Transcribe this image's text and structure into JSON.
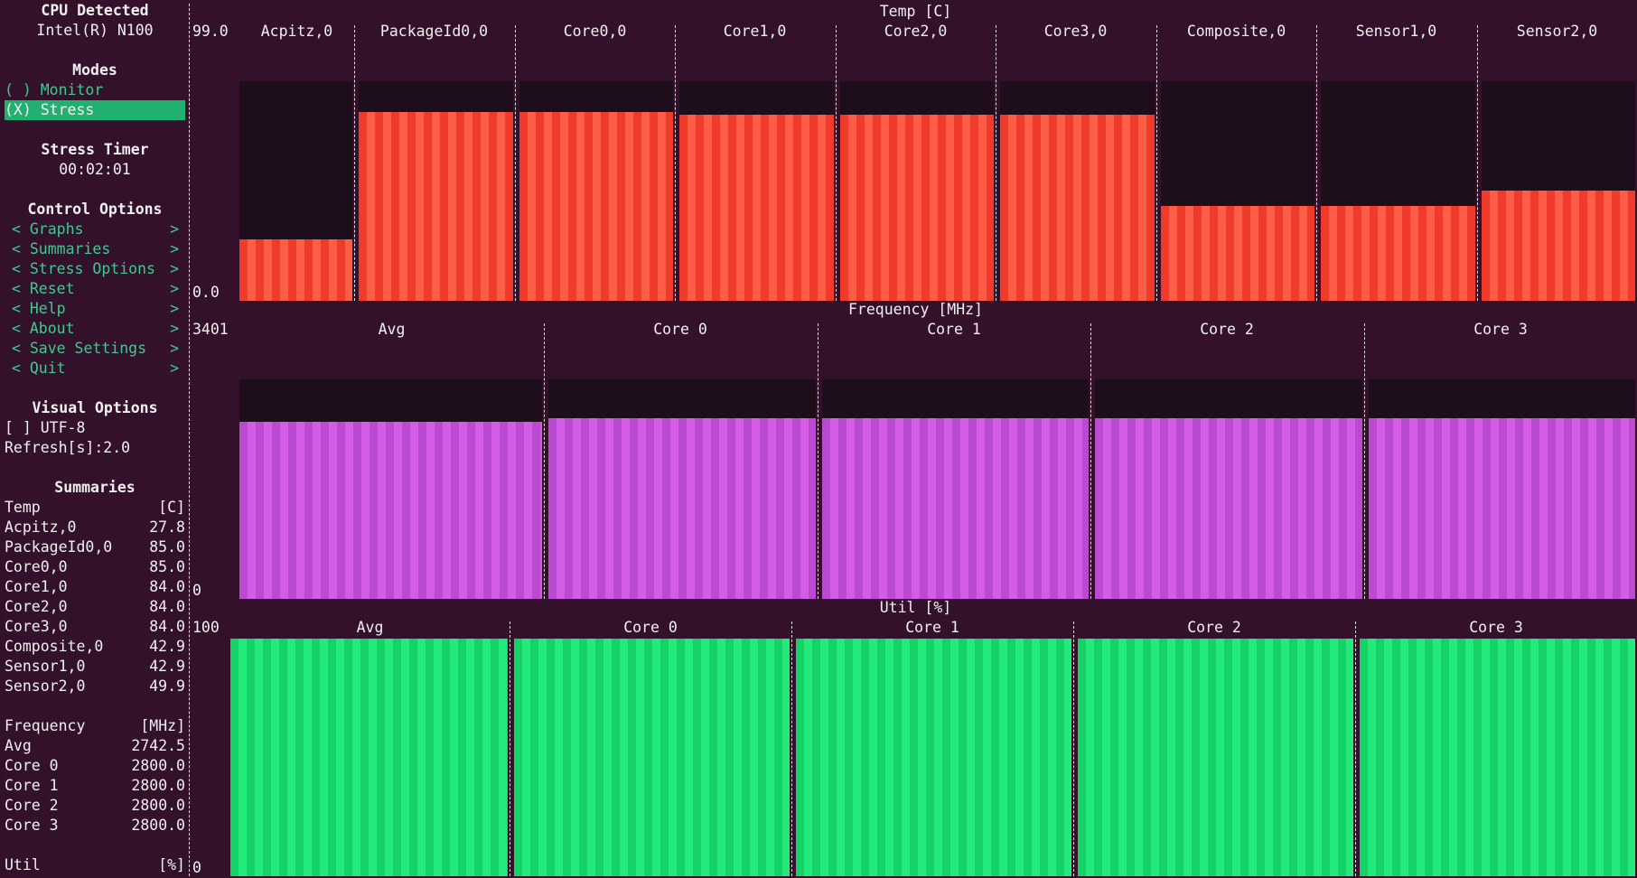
{
  "sidebar": {
    "cpu_title": "CPU Detected",
    "cpu_name": "Intel(R) N100",
    "modes_title": "Modes",
    "modes": [
      {
        "label": "( ) Monitor",
        "selected": false
      },
      {
        "label": "(X) Stress",
        "selected": true
      }
    ],
    "timer_title": "Stress Timer",
    "timer_value": "00:02:01",
    "control_title": "Control Options",
    "control_items": [
      {
        "left": "< Graphs",
        "right": ">"
      },
      {
        "left": "< Summaries",
        "right": ">"
      },
      {
        "left": "< Stress Options",
        "right": ">"
      },
      {
        "left": "< Reset",
        "right": ">"
      },
      {
        "left": "< Help",
        "right": ">"
      },
      {
        "left": "< About",
        "right": ">"
      },
      {
        "left": "< Save Settings",
        "right": ">"
      },
      {
        "left": "< Quit",
        "right": ">"
      }
    ],
    "visual_title": "Visual Options",
    "utf8_option": "[ ] UTF-8",
    "refresh_option": "Refresh[s]:2.0",
    "summaries_title": "Summaries",
    "summaries": [
      {
        "label": "Temp",
        "value": "[C]"
      },
      {
        "label": "Acpitz,0",
        "value": "27.8"
      },
      {
        "label": "PackageId0,0",
        "value": "85.0"
      },
      {
        "label": "Core0,0",
        "value": "85.0"
      },
      {
        "label": "Core1,0",
        "value": "84.0"
      },
      {
        "label": "Core2,0",
        "value": "84.0"
      },
      {
        "label": "Core3,0",
        "value": "84.0"
      },
      {
        "label": "Composite,0",
        "value": "42.9"
      },
      {
        "label": "Sensor1,0",
        "value": "42.9"
      },
      {
        "label": "Sensor2,0",
        "value": "49.9"
      },
      {
        "label": "",
        "value": ""
      },
      {
        "label": "Frequency",
        "value": "[MHz]"
      },
      {
        "label": "Avg",
        "value": "2742.5"
      },
      {
        "label": "Core 0",
        "value": "2800.0"
      },
      {
        "label": "Core 1",
        "value": "2800.0"
      },
      {
        "label": "Core 2",
        "value": "2800.0"
      },
      {
        "label": "Core 3",
        "value": "2800.0"
      },
      {
        "label": "",
        "value": ""
      },
      {
        "label": "Util",
        "value": "[%]"
      }
    ]
  },
  "graphs": {
    "temp": {
      "title": "Temp [C]",
      "max_label": "99.0",
      "min_label": "0.0",
      "columns": [
        "Acpitz,0",
        "PackageId0,0",
        "Core0,0",
        "Core1,0",
        "Core2,0",
        "Core3,0",
        "Composite,0",
        "Sensor1,0",
        "Sensor2,0"
      ]
    },
    "freq": {
      "title": "Frequency [MHz]",
      "max_label": "3401",
      "min_label": "0",
      "columns": [
        "Avg",
        "Core 0",
        "Core 1",
        "Core 2",
        "Core 3"
      ]
    },
    "util": {
      "title": "Util [%]",
      "max_label": "100",
      "min_label": "0",
      "columns": [
        "Avg",
        "Core 0",
        "Core 1",
        "Core 2",
        "Core 3"
      ]
    }
  },
  "chart_data": [
    {
      "type": "bar",
      "title": "Temp [C]",
      "ylim": [
        0,
        99
      ],
      "categories": [
        "Acpitz,0",
        "PackageId0,0",
        "Core0,0",
        "Core1,0",
        "Core2,0",
        "Core3,0",
        "Composite,0",
        "Sensor1,0",
        "Sensor2,0"
      ],
      "values": [
        27.8,
        85.0,
        85.0,
        84.0,
        84.0,
        84.0,
        42.9,
        42.9,
        49.9
      ],
      "colors": [
        "#f03a2c",
        "#ff5e46"
      ]
    },
    {
      "type": "bar",
      "title": "Frequency [MHz]",
      "ylim": [
        0,
        3401
      ],
      "categories": [
        "Avg",
        "Core 0",
        "Core 1",
        "Core 2",
        "Core 3"
      ],
      "values": [
        2742.5,
        2800.0,
        2800.0,
        2800.0,
        2800.0
      ],
      "colors": [
        "#ba4ad0",
        "#d35de6"
      ]
    },
    {
      "type": "bar",
      "title": "Util [%]",
      "ylim": [
        0,
        100
      ],
      "categories": [
        "Avg",
        "Core 0",
        "Core 1",
        "Core 2",
        "Core 3"
      ],
      "values": [
        100,
        100,
        100,
        100,
        100
      ],
      "colors": [
        "#14d266",
        "#24ea7c"
      ]
    }
  ]
}
